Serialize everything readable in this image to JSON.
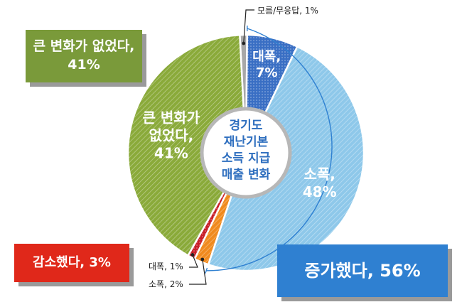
{
  "chart_data": {
    "type": "pie",
    "center_title": [
      "경기도",
      "재난기본",
      "소득 지급",
      "매출 변화"
    ],
    "slices": [
      {
        "key": "unknown",
        "label": "모름/무응답, 1%",
        "value": 1,
        "color": "#a8a8a8",
        "pattern": "none"
      },
      {
        "key": "big-inc",
        "label_lines": [
          "대폭,",
          "7%"
        ],
        "value": 7,
        "color": "#3a6fc4",
        "pattern": "dots"
      },
      {
        "key": "small-inc",
        "label_lines": [
          "소폭,",
          "48%"
        ],
        "value": 48,
        "color": "#8ec8ea",
        "pattern": "hatch"
      },
      {
        "key": "small-dec",
        "label": "소폭, 2%",
        "value": 2,
        "color": "#f08a1e",
        "pattern": "hatch"
      },
      {
        "key": "big-dec",
        "label": "대폭, 1%",
        "value": 1,
        "color": "#c8202a",
        "pattern": "dots"
      },
      {
        "key": "nochange",
        "label_lines": [
          "큰 변화가",
          "없었다,",
          "41%"
        ],
        "value": 41,
        "color": "#8aaa3a",
        "pattern": "hatch"
      }
    ],
    "groups": {
      "no_change": {
        "label_lines": [
          "큰 변화가 없었다,",
          "41%"
        ],
        "color": "#7a9a3a"
      },
      "decrease": {
        "label": "감소했다, 3%",
        "color": "#e0281a"
      },
      "increase": {
        "label": "증가했다, 56%",
        "color": "#2f80d1"
      }
    }
  }
}
